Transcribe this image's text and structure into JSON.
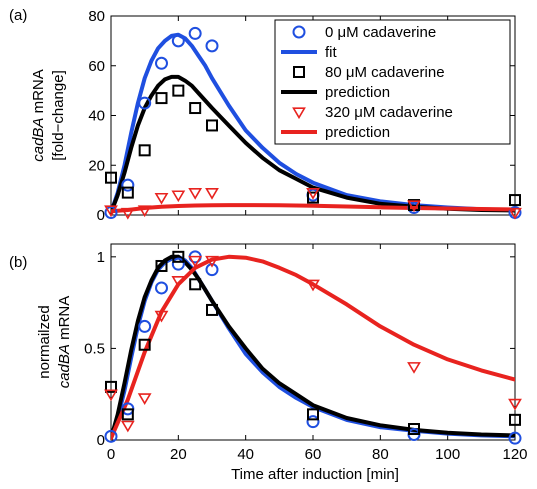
{
  "chart_data": [
    {
      "panel_label": "(a)",
      "type": "line",
      "ylabel_lines": [
        [
          "cadBA",
          " mRNA"
        ],
        [
          "[fold−change]"
        ]
      ],
      "ylabel_italic": [
        true,
        false
      ],
      "xlim": [
        0,
        120
      ],
      "ylim": [
        0,
        80
      ],
      "xticks": [
        0,
        20,
        40,
        60,
        80,
        100,
        120
      ],
      "yticks": [
        0,
        20,
        40,
        60,
        80
      ],
      "show_xtick_labels": false,
      "legend": {
        "position": "top-right",
        "entries": [
          {
            "label": "0 μM cadaverine",
            "kind": "marker",
            "marker": "circle",
            "color": "#1f4fe0"
          },
          {
            "label": "fit",
            "kind": "line",
            "color": "#1f4fe0"
          },
          {
            "label": "80 μM cadaverine",
            "kind": "marker",
            "marker": "square",
            "color": "#000000"
          },
          {
            "label": "prediction",
            "kind": "line",
            "color": "#000000"
          },
          {
            "label": "320 μM cadaverine",
            "kind": "marker",
            "marker": "triangle-down",
            "color": "#e8231f"
          },
          {
            "label": "prediction",
            "kind": "line",
            "color": "#e8231f"
          }
        ]
      },
      "series": [
        {
          "kind": "scatter",
          "marker": "circle",
          "color": "#1f4fe0",
          "x": [
            0,
            5,
            10,
            15,
            20,
            25,
            30,
            60,
            90,
            120
          ],
          "y": [
            1,
            12,
            45,
            61,
            70,
            73,
            68,
            8,
            3,
            1
          ]
        },
        {
          "kind": "scatter",
          "marker": "square",
          "color": "#000000",
          "x": [
            0,
            5,
            10,
            15,
            20,
            25,
            30,
            60,
            90,
            120
          ],
          "y": [
            15,
            9,
            26,
            47,
            50,
            43,
            36,
            7,
            4,
            6
          ]
        },
        {
          "kind": "scatter",
          "marker": "triangle-down",
          "color": "#e8231f",
          "x": [
            0,
            5,
            10,
            15,
            20,
            25,
            30,
            60,
            90,
            120
          ],
          "y": [
            2,
            1,
            2,
            7,
            8,
            9,
            9,
            9,
            4,
            1
          ]
        },
        {
          "kind": "line",
          "color": "#1f4fe0",
          "x": [
            0,
            2,
            4,
            6,
            8,
            10,
            12,
            14,
            16,
            18,
            20,
            22,
            24,
            26,
            28,
            30,
            35,
            40,
            45,
            50,
            55,
            60,
            70,
            80,
            90,
            100,
            110,
            120
          ],
          "y": [
            1,
            9,
            20,
            33,
            45,
            55,
            62,
            67,
            70,
            72,
            72.5,
            71,
            68,
            64,
            60,
            55,
            44,
            34,
            27,
            21,
            16.5,
            13,
            8,
            5.5,
            4,
            3,
            2.3,
            2
          ]
        },
        {
          "kind": "line",
          "color": "#000000",
          "x": [
            0,
            2,
            4,
            6,
            8,
            10,
            12,
            14,
            16,
            18,
            20,
            22,
            24,
            26,
            28,
            30,
            35,
            40,
            45,
            50,
            55,
            60,
            70,
            80,
            90,
            100,
            110,
            120
          ],
          "y": [
            1,
            8,
            17,
            27,
            36,
            43,
            48,
            52,
            54.5,
            55.5,
            55.5,
            54,
            52,
            49,
            46,
            43,
            36,
            29,
            23,
            18,
            14.5,
            11,
            7,
            4.5,
            3.3,
            2.5,
            2,
            1.8
          ]
        },
        {
          "kind": "line",
          "color": "#e8231f",
          "x": [
            0,
            5,
            10,
            15,
            20,
            25,
            30,
            35,
            40,
            50,
            60,
            70,
            80,
            90,
            100,
            110,
            120
          ],
          "y": [
            1.5,
            2,
            2.8,
            3.3,
            3.6,
            3.8,
            3.9,
            4,
            4,
            3.9,
            3.7,
            3.4,
            3.1,
            2.8,
            2.6,
            2.4,
            2.2
          ]
        }
      ]
    },
    {
      "panel_label": "(b)",
      "type": "line",
      "ylabel_lines": [
        [
          "normailzed"
        ],
        [
          "cadBA",
          " mRNA"
        ]
      ],
      "ylabel_italic": [
        false,
        true
      ],
      "xlabel": "Time after induction [min]",
      "xlim": [
        0,
        120
      ],
      "ylim": [
        0,
        1.07
      ],
      "xticks": [
        0,
        20,
        40,
        60,
        80,
        100,
        120
      ],
      "yticks": [
        0,
        0.5,
        1
      ],
      "ytick_labels": [
        "0",
        "0.5",
        "1"
      ],
      "show_xtick_labels": true,
      "series": [
        {
          "kind": "scatter",
          "marker": "circle",
          "color": "#1f4fe0",
          "x": [
            0,
            5,
            10,
            15,
            20,
            25,
            30,
            60,
            90,
            120
          ],
          "y": [
            0.02,
            0.17,
            0.62,
            0.83,
            0.96,
            1.0,
            0.93,
            0.1,
            0.03,
            0.01
          ]
        },
        {
          "kind": "scatter",
          "marker": "square",
          "color": "#000000",
          "x": [
            0,
            5,
            10,
            15,
            20,
            25,
            30,
            60,
            90,
            120
          ],
          "y": [
            0.29,
            0.14,
            0.52,
            0.95,
            1.0,
            0.85,
            0.71,
            0.14,
            0.06,
            0.11
          ]
        },
        {
          "kind": "scatter",
          "marker": "triangle-down",
          "color": "#e8231f",
          "x": [
            0,
            5,
            10,
            15,
            20,
            25,
            30,
            60,
            90,
            120
          ],
          "y": [
            0.25,
            0.08,
            0.23,
            0.68,
            0.87,
            0.98,
            0.98,
            0.85,
            0.4,
            0.2
          ]
        },
        {
          "kind": "line",
          "color": "#1f4fe0",
          "x": [
            0,
            2,
            4,
            6,
            8,
            10,
            12,
            14,
            16,
            18,
            20,
            22,
            24,
            26,
            28,
            30,
            35,
            40,
            45,
            50,
            55,
            60,
            70,
            80,
            90,
            100,
            110,
            120
          ],
          "y": [
            0.01,
            0.12,
            0.27,
            0.45,
            0.62,
            0.76,
            0.86,
            0.93,
            0.97,
            0.99,
            1.0,
            0.98,
            0.94,
            0.88,
            0.82,
            0.76,
            0.61,
            0.47,
            0.37,
            0.29,
            0.23,
            0.18,
            0.11,
            0.07,
            0.05,
            0.035,
            0.025,
            0.02
          ]
        },
        {
          "kind": "line",
          "color": "#000000",
          "x": [
            0,
            2,
            4,
            6,
            8,
            10,
            12,
            14,
            16,
            18,
            20,
            22,
            24,
            26,
            28,
            30,
            35,
            40,
            45,
            50,
            55,
            60,
            70,
            80,
            90,
            100,
            110,
            120
          ],
          "y": [
            0.01,
            0.14,
            0.31,
            0.49,
            0.65,
            0.78,
            0.87,
            0.94,
            0.98,
            1.0,
            1.0,
            0.97,
            0.93,
            0.88,
            0.82,
            0.76,
            0.62,
            0.5,
            0.39,
            0.31,
            0.25,
            0.19,
            0.12,
            0.08,
            0.055,
            0.04,
            0.03,
            0.025
          ]
        },
        {
          "kind": "line",
          "color": "#e8231f",
          "x": [
            0,
            5,
            10,
            15,
            20,
            25,
            30,
            35,
            40,
            45,
            50,
            55,
            60,
            70,
            80,
            90,
            100,
            110,
            120
          ],
          "y": [
            0.01,
            0.22,
            0.48,
            0.7,
            0.85,
            0.94,
            0.985,
            1.0,
            0.995,
            0.975,
            0.94,
            0.9,
            0.85,
            0.74,
            0.62,
            0.52,
            0.44,
            0.38,
            0.33
          ]
        }
      ]
    }
  ]
}
